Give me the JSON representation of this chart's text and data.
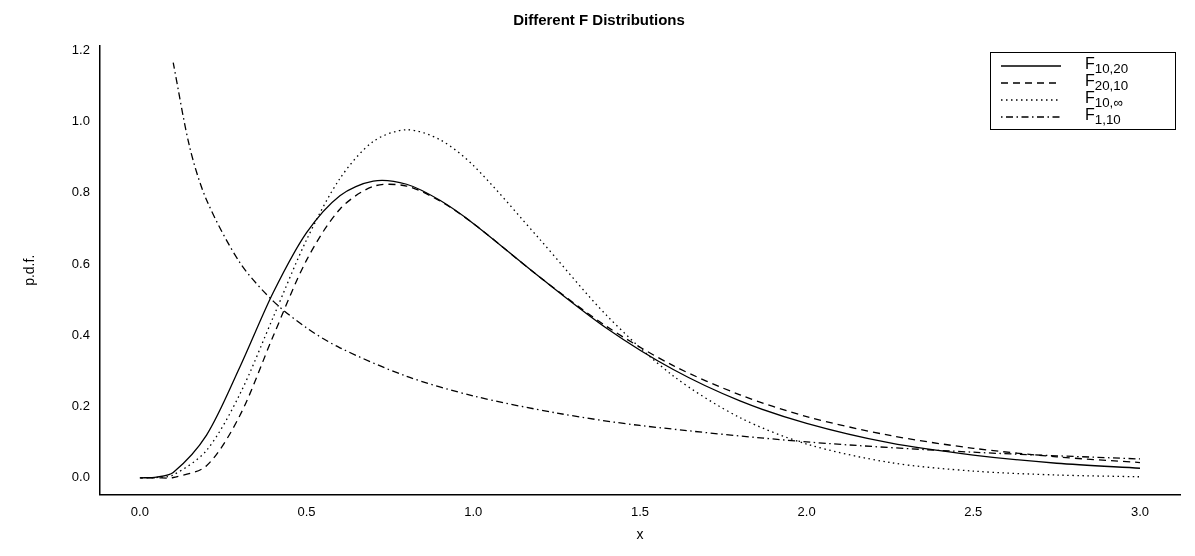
{
  "chart_data": {
    "type": "line",
    "title": "Different F Distributions",
    "xlabel": "x",
    "ylabel": "p.d.f.",
    "x": [
      0,
      0.05,
      0.1,
      0.2,
      0.3,
      0.4,
      0.5,
      0.6,
      0.7,
      0.8,
      0.9,
      1.0,
      1.2,
      1.4,
      1.6,
      1.8,
      2.0,
      2.25,
      2.5,
      2.75,
      3.0
    ],
    "series": [
      {
        "name": "F$_{10,20}$",
        "color": "#000000",
        "line_style": "solid",
        "values": [
          0,
          0.002,
          0.015,
          0.12,
          0.311,
          0.52,
          0.688,
          0.792,
          0.833,
          0.824,
          0.779,
          0.714,
          0.563,
          0.42,
          0.304,
          0.216,
          0.153,
          0.098,
          0.064,
          0.041,
          0.027
        ]
      },
      {
        "name": "F$_{20,10}$",
        "color": "#000000",
        "line_style": "dashed",
        "values": [
          0,
          0,
          0.001,
          0.034,
          0.175,
          0.398,
          0.611,
          0.754,
          0.818,
          0.819,
          0.777,
          0.714,
          0.563,
          0.425,
          0.315,
          0.233,
          0.172,
          0.119,
          0.083,
          0.059,
          0.043
        ]
      },
      {
        "name": "F$_{10,∞}$",
        "color": "#000000",
        "line_style": "dotted",
        "values": [
          0,
          0.001,
          0.008,
          0.077,
          0.235,
          0.451,
          0.668,
          0.84,
          0.944,
          0.977,
          0.949,
          0.877,
          0.669,
          0.456,
          0.286,
          0.169,
          0.095,
          0.043,
          0.019,
          0.008,
          0.003
        ]
      },
      {
        "name": "F$_{1,10}$",
        "color": "#000000",
        "line_style": "dashdot",
        "x": [
          0.1,
          0.15,
          0.2,
          0.3,
          0.4,
          0.5,
          0.6,
          0.8,
          1.0,
          1.25,
          1.5,
          2.0,
          2.5,
          3.0
        ],
        "values": [
          1.165,
          0.926,
          0.78,
          0.604,
          0.496,
          0.421,
          0.365,
          0.285,
          0.23,
          0.182,
          0.147,
          0.101,
          0.072,
          0.053
        ]
      }
    ],
    "xlim": [
      -0.12,
      3.12
    ],
    "ylim": [
      -0.047,
      1.212
    ],
    "xticks": [
      {
        "value": 0,
        "label": "0.0"
      },
      0.5,
      {
        "value": 1,
        "label": "1.0"
      },
      1.5,
      {
        "value": 2,
        "label": "2.0"
      },
      2.5,
      {
        "value": 3,
        "label": "3.0"
      }
    ],
    "yticks": [
      {
        "value": 0,
        "label": "0.0"
      },
      0.2,
      0.4,
      0.6,
      0.8,
      {
        "value": 1,
        "label": "1.0"
      },
      1.2
    ],
    "grid": false,
    "legend": "top right"
  }
}
